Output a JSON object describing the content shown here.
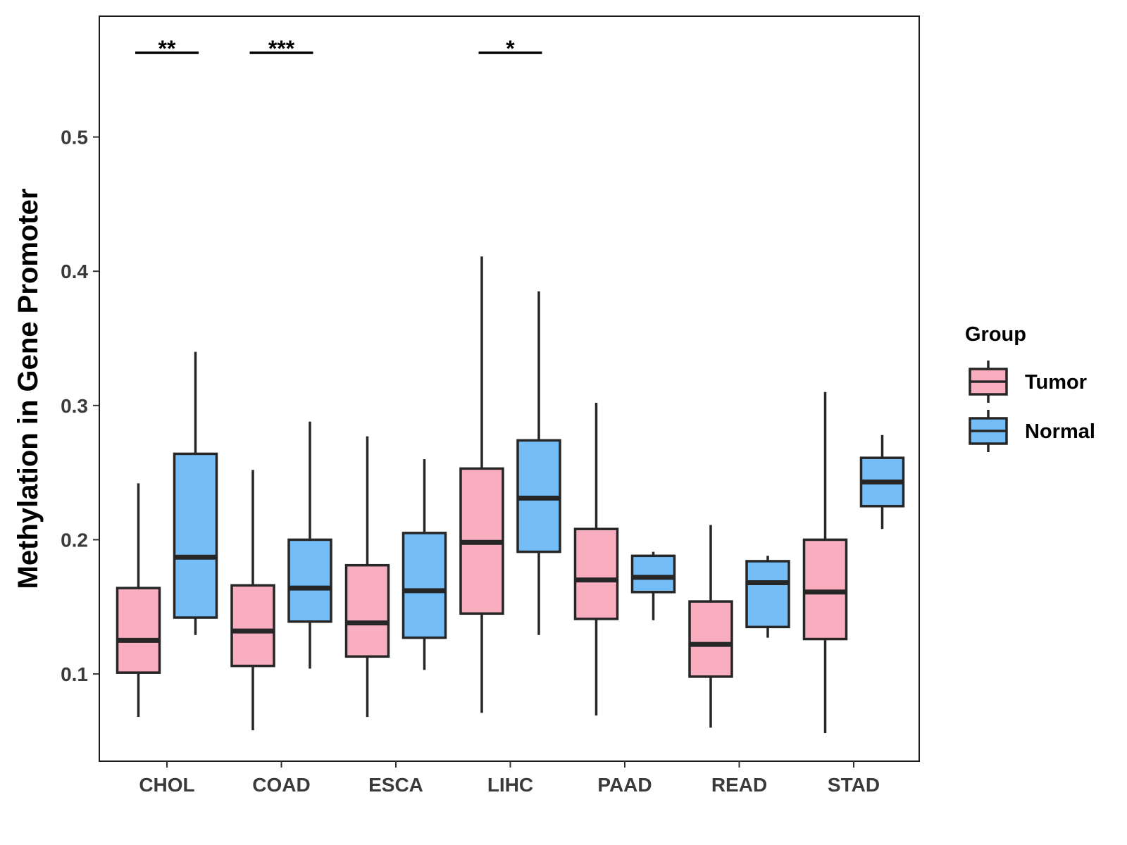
{
  "chart_data": {
    "type": "boxplot",
    "title": "",
    "xlabel": "",
    "ylabel": "Methylation in Gene Promoter",
    "ylim": [
      0.035,
      0.59
    ],
    "yticks": [
      0.1,
      0.2,
      0.3,
      0.4,
      0.5
    ],
    "ytick_labels": [
      "0.1",
      "0.2",
      "0.3",
      "0.4",
      "0.5"
    ],
    "categories": [
      "CHOL",
      "COAD",
      "ESCA",
      "LIHC",
      "PAAD",
      "READ",
      "STAD"
    ],
    "legend": {
      "title": "Group",
      "position": "right",
      "entries": [
        {
          "name": "Tumor",
          "color": "#f9aec0"
        },
        {
          "name": "Normal",
          "color": "#74bdf7"
        }
      ]
    },
    "series": [
      {
        "name": "Tumor",
        "color": "#f9aec0",
        "boxes": [
          {
            "category": "CHOL",
            "min": 0.068,
            "q1": 0.101,
            "median": 0.125,
            "q3": 0.164,
            "max": 0.242
          },
          {
            "category": "COAD",
            "min": 0.058,
            "q1": 0.106,
            "median": 0.132,
            "q3": 0.166,
            "max": 0.252
          },
          {
            "category": "ESCA",
            "min": 0.068,
            "q1": 0.113,
            "median": 0.138,
            "q3": 0.181,
            "max": 0.277
          },
          {
            "category": "LIHC",
            "min": 0.071,
            "q1": 0.145,
            "median": 0.198,
            "q3": 0.253,
            "max": 0.411
          },
          {
            "category": "PAAD",
            "min": 0.069,
            "q1": 0.141,
            "median": 0.17,
            "q3": 0.208,
            "max": 0.302
          },
          {
            "category": "READ",
            "min": 0.06,
            "q1": 0.098,
            "median": 0.122,
            "q3": 0.154,
            "max": 0.211
          },
          {
            "category": "STAD",
            "min": 0.056,
            "q1": 0.126,
            "median": 0.161,
            "q3": 0.2,
            "max": 0.31
          }
        ]
      },
      {
        "name": "Normal",
        "color": "#74bdf7",
        "boxes": [
          {
            "category": "CHOL",
            "min": 0.129,
            "q1": 0.142,
            "median": 0.187,
            "q3": 0.264,
            "max": 0.34
          },
          {
            "category": "COAD",
            "min": 0.104,
            "q1": 0.139,
            "median": 0.164,
            "q3": 0.2,
            "max": 0.288
          },
          {
            "category": "ESCA",
            "min": 0.103,
            "q1": 0.127,
            "median": 0.162,
            "q3": 0.205,
            "max": 0.26
          },
          {
            "category": "LIHC",
            "min": 0.129,
            "q1": 0.191,
            "median": 0.231,
            "q3": 0.274,
            "max": 0.385
          },
          {
            "category": "PAAD",
            "min": 0.14,
            "q1": 0.161,
            "median": 0.172,
            "q3": 0.188,
            "max": 0.191
          },
          {
            "category": "READ",
            "min": 0.127,
            "q1": 0.135,
            "median": 0.168,
            "q3": 0.184,
            "max": 0.188
          },
          {
            "category": "STAD",
            "min": 0.208,
            "q1": 0.225,
            "median": 0.243,
            "q3": 0.261,
            "max": 0.278
          }
        ]
      }
    ],
    "significance": [
      {
        "category": "CHOL",
        "label": "**"
      },
      {
        "category": "COAD",
        "label": "***"
      },
      {
        "category": "LIHC",
        "label": "*"
      }
    ]
  }
}
